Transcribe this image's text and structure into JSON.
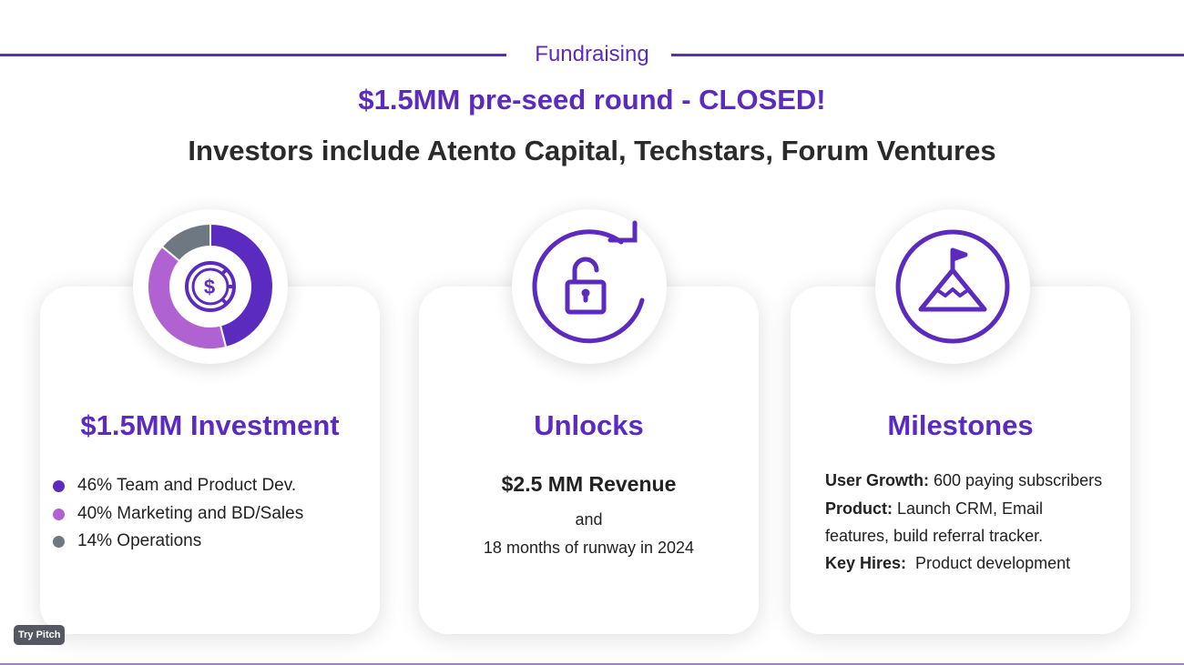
{
  "header": {
    "section": "Fundraising",
    "title": "$1.5MM pre-seed round - CLOSED!",
    "subtitle": "Investors include Atento Capital, Techstars, Forum Ventures"
  },
  "colors": {
    "accent": "#5b2bbf",
    "secondary": "#b062d2",
    "gray": "#6e7882"
  },
  "investment": {
    "title": "$1.5MM Investment",
    "icon": "dollar-clock-icon",
    "chart_data": {
      "type": "pie",
      "values": [
        46,
        40,
        14
      ]
    },
    "items": [
      {
        "label": "46% Team and Product Dev.",
        "color": "#5b2bbf"
      },
      {
        "label": "40% Marketing and BD/Sales",
        "color": "#b062d2"
      },
      {
        "label": "14% Operations",
        "color": "#6e7882"
      }
    ]
  },
  "unlocks": {
    "title": "Unlocks",
    "icon": "unlock-refresh-icon",
    "revenue": "$2.5 MM Revenue",
    "and": "and",
    "runway": "18 months of runway in 2024"
  },
  "milestones": {
    "title": "Milestones",
    "icon": "mountain-flag-icon",
    "items": [
      {
        "k": "User Growth:",
        "v": " 600 paying subscribers"
      },
      {
        "k": "Product:",
        "v": " Launch CRM, Email"
      },
      {
        "k": "",
        "v": "features, build referral tracker."
      },
      {
        "k": "Key Hires:",
        "v": "  Product development"
      }
    ]
  },
  "badge": "Try Pitch"
}
